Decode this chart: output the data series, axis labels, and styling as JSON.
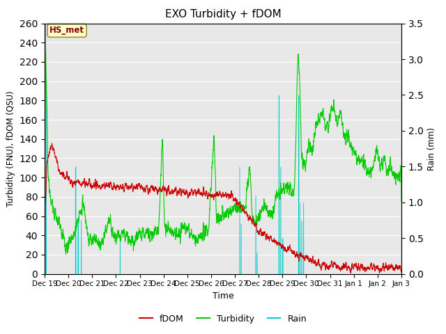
{
  "title": "EXO Turbidity + fDOM",
  "xlabel": "Time",
  "ylabel_left": "Turbidity (FNU), fDOM (QSU)",
  "ylabel_right": "Rain (mm)",
  "ylim_left": [
    0,
    260
  ],
  "ylim_right": [
    0,
    3.5
  ],
  "yticks_left": [
    0,
    20,
    40,
    60,
    80,
    100,
    120,
    140,
    160,
    180,
    200,
    220,
    240,
    260
  ],
  "yticks_right": [
    0.0,
    0.5,
    1.0,
    1.5,
    2.0,
    2.5,
    3.0,
    3.5
  ],
  "background_color": "#e8e8e8",
  "grid_color": "#ffffff",
  "annotation_text": "HS_met",
  "annotation_bbox_facecolor": "#ffffcc",
  "annotation_bbox_edgecolor": "#999933",
  "fdom_color": "#cc0000",
  "turbidity_color": "#00cc00",
  "rain_color": "#00cccc",
  "legend_labels": [
    "fDOM",
    "Turbidity",
    "Rain"
  ],
  "num_points": 3360,
  "seed": 42
}
